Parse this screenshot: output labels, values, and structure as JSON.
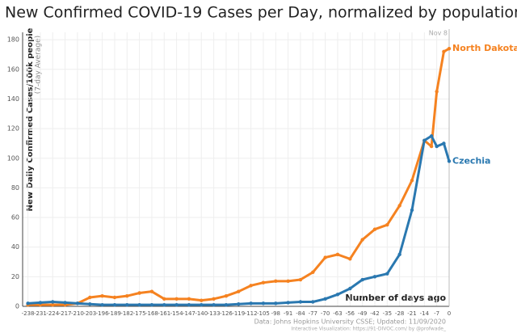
{
  "chart_data": {
    "type": "line",
    "title": "New Confirmed COVID-19 Cases per Day, normalized by population",
    "y_label": "New Daily Confirmed Cases/100k people",
    "y_sublabel": "(7-day Average)",
    "x_label": "Number of days ago",
    "marker_label": "Nov 8",
    "source": "Data: Johns Hopkins University CSSE; Updated: 11/09/2020",
    "credit": "Interactive Visualization: https://91-DIVOC.com/ by @profwade_",
    "x": [
      -238,
      -231,
      -224,
      -217,
      -210,
      -203,
      -196,
      -189,
      -182,
      -175,
      -168,
      -161,
      -154,
      -147,
      -140,
      -133,
      -126,
      -119,
      -112,
      -105,
      -98,
      -91,
      -84,
      -77,
      -70,
      -63,
      -56,
      -49,
      -42,
      -35,
      -28,
      -21,
      -14,
      -10,
      -7,
      -3,
      0
    ],
    "series": [
      {
        "name": "North Dakota",
        "color": "#f58220",
        "values": [
          1,
          1,
          1,
          1,
          2,
          6,
          7,
          6,
          7,
          9,
          10,
          5,
          5,
          5,
          4,
          5,
          7,
          10,
          14,
          16,
          17,
          17,
          18,
          23,
          33,
          35,
          32,
          45,
          52,
          55,
          68,
          85,
          112,
          108,
          145,
          172,
          174
        ]
      },
      {
        "name": "Czechia",
        "color": "#2a78b0",
        "values": [
          2,
          2.5,
          3,
          2.5,
          2,
          1.5,
          1,
          1,
          1,
          1,
          1,
          1,
          1,
          1,
          1,
          1,
          1,
          1.5,
          2,
          2,
          2,
          2.5,
          3,
          3,
          5,
          8,
          12,
          18,
          20,
          22,
          35,
          65,
          112,
          115,
          108,
          110,
          98
        ]
      }
    ],
    "xlim": [
      -241,
      0
    ],
    "ylim": [
      0,
      185
    ],
    "xticks": [
      -238,
      -231,
      -224,
      -217,
      -210,
      -203,
      -196,
      -189,
      -182,
      -175,
      -168,
      -161,
      -154,
      -147,
      -140,
      -133,
      -126,
      -119,
      -112,
      -105,
      -98,
      -91,
      -84,
      -77,
      -70,
      -63,
      -56,
      -49,
      -42,
      -35,
      -28,
      -21,
      -14,
      -7,
      0
    ],
    "yticks": [
      0,
      20,
      40,
      60,
      80,
      100,
      120,
      140,
      160,
      180
    ],
    "grid": true
  }
}
